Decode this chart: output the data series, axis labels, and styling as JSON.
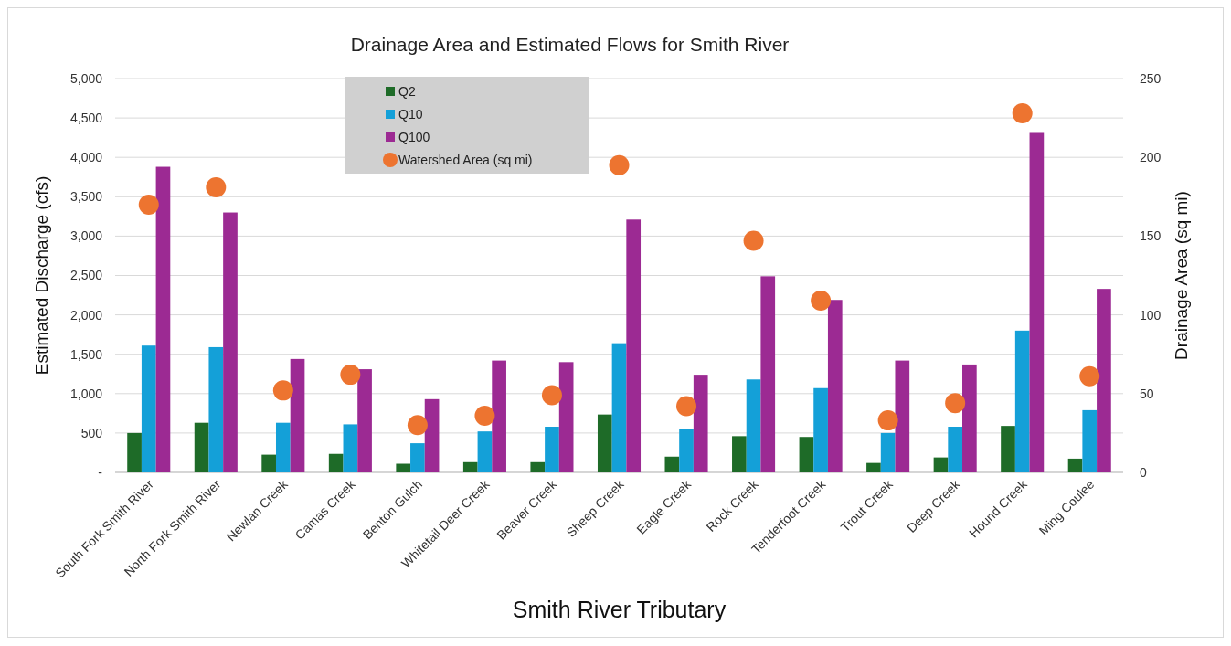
{
  "chart_data": {
    "type": "bar",
    "title": "Drainage Area and Estimated Flows for Smith River",
    "xlabel": "Smith River Tributary",
    "ylabel": "Estimated Discharge (cfs)",
    "y2label": "Drainage Area (sq mi)",
    "categories": [
      "South Fork Smith River",
      "North Fork Smith River",
      "Newlan Creek",
      "Camas Creek",
      "Benton Gulch",
      "Whitetail Deer Creek",
      "Beaver Creek",
      "Sheep Creek",
      "Eagle Creek",
      "Rock Creek",
      "Tenderfoot Creek",
      "Trout Creek",
      "Deep Creek",
      "Hound Creek",
      "Ming Coulee"
    ],
    "series": [
      {
        "name": "Q2",
        "color": "#1e6b28",
        "values": [
          500,
          630,
          225,
          235,
          110,
          130,
          130,
          735,
          200,
          460,
          450,
          120,
          190,
          590,
          175
        ]
      },
      {
        "name": "Q10",
        "color": "#14a0d8",
        "values": [
          1610,
          1590,
          630,
          610,
          370,
          520,
          580,
          1640,
          550,
          1180,
          1070,
          500,
          580,
          1800,
          790
        ]
      },
      {
        "name": "Q100",
        "color": "#9c2a93",
        "values": [
          3880,
          3300,
          1440,
          1310,
          930,
          1420,
          1400,
          3210,
          1240,
          2490,
          2190,
          1420,
          1370,
          4310,
          2330
        ]
      },
      {
        "name": "Watershed Area (sq mi)",
        "type": "scatter",
        "axis": "y2",
        "color": "#ed7430",
        "values": [
          170,
          181,
          52,
          62,
          30,
          36,
          49,
          195,
          42,
          147,
          109,
          33,
          44,
          228,
          61
        ]
      }
    ],
    "ylim": [
      0,
      5000
    ],
    "yticks": [
      {
        "value": 0,
        "label": "-"
      },
      {
        "value": 500,
        "label": "500"
      },
      {
        "value": 1000,
        "label": "1,000"
      },
      {
        "value": 1500,
        "label": "1,500"
      },
      {
        "value": 2000,
        "label": "2,000"
      },
      {
        "value": 2500,
        "label": "2,500"
      },
      {
        "value": 3000,
        "label": "3,000"
      },
      {
        "value": 3500,
        "label": "3,500"
      },
      {
        "value": 4000,
        "label": "4,000"
      },
      {
        "value": 4500,
        "label": "4,500"
      },
      {
        "value": 5000,
        "label": "5,000"
      }
    ],
    "y2lim": [
      0,
      250
    ],
    "y2ticks": [
      0,
      50,
      100,
      150,
      200,
      250
    ],
    "grid": "y",
    "legend": "top",
    "marker": "circle"
  }
}
